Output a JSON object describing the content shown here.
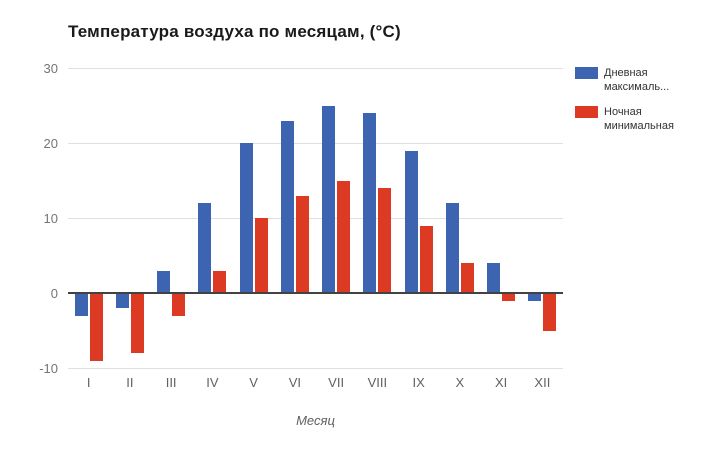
{
  "chart_data": {
    "type": "bar",
    "title": "Температура воздуха по месяцам, (°C)",
    "xlabel": "Месяц",
    "ylabel": "",
    "categories": [
      "I",
      "II",
      "III",
      "IV",
      "V",
      "VI",
      "VII",
      "VIII",
      "IX",
      "X",
      "XI",
      "XII"
    ],
    "series": [
      {
        "name": "Дневная максималь...",
        "legend_lines": [
          "Дневная",
          "максималь..."
        ],
        "color": "#3d64b1",
        "values": [
          -3,
          -2,
          3,
          12,
          20,
          23,
          25,
          24,
          19,
          12,
          4,
          -1
        ]
      },
      {
        "name": "Ночная минимальная",
        "legend_lines": [
          "Ночная",
          "минимальная"
        ],
        "color": "#dc3a23",
        "values": [
          -9,
          -8,
          -3,
          3,
          10,
          13,
          15,
          14,
          9,
          4,
          -1,
          -5
        ]
      }
    ],
    "ylim": [
      -10,
      30
    ],
    "yticks": [
      30,
      20,
      10,
      0,
      -10
    ],
    "grid": true,
    "legend_position": "right"
  },
  "colors": {
    "grid": "#e0e0e0",
    "zero_axis": "#424242",
    "ytick_text": "#757575",
    "xtick_text": "#616161",
    "legend_text": "#333333",
    "title_text": "#1a1a1a",
    "background": "#ffffff"
  }
}
